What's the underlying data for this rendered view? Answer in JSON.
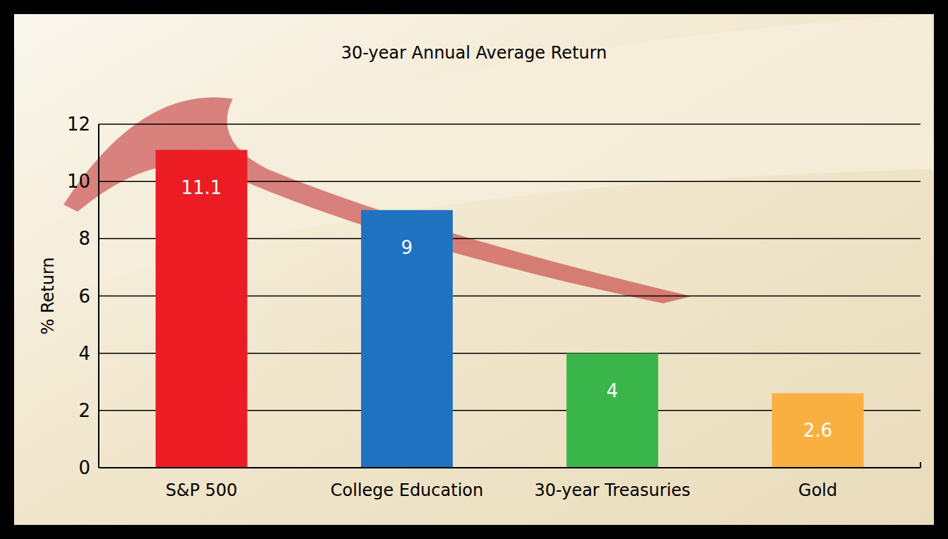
{
  "chart_data": {
    "type": "bar",
    "title": "30-year Annual Average Return",
    "y_label": "% Return",
    "categories": [
      "S&P 500",
      "College Education",
      "30-year Treasuries",
      "Gold"
    ],
    "values": [
      11.1,
      9,
      4,
      2.6
    ],
    "colors": [
      "#ec1c24",
      "#1f72bf",
      "#39b54a",
      "#f9b040"
    ],
    "ylim": [
      0,
      12
    ],
    "yticks": [
      0,
      2,
      4,
      6,
      8,
      10,
      12
    ],
    "grid": true,
    "data_labels": true
  }
}
